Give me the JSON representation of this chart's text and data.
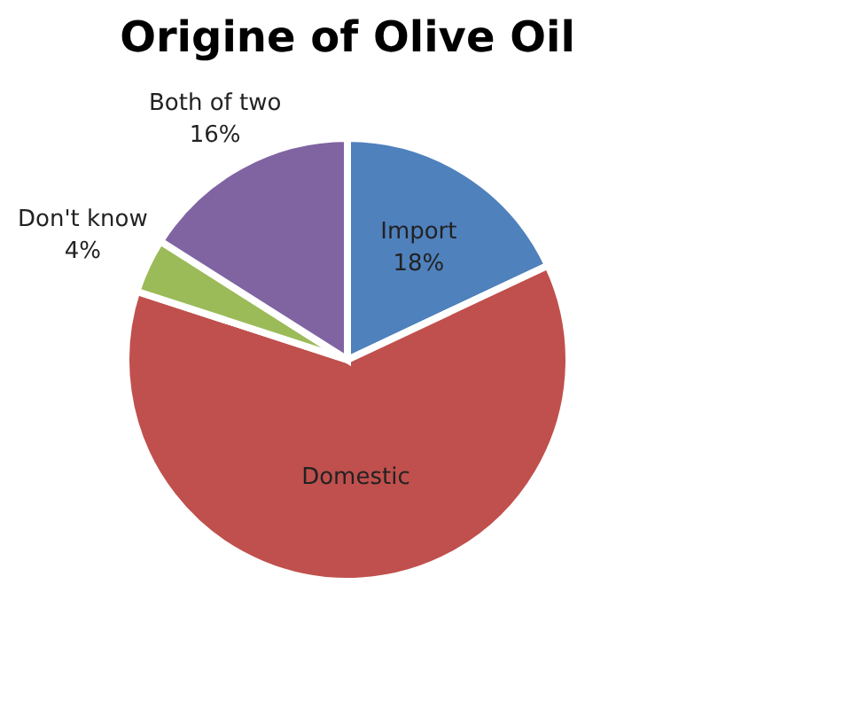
{
  "chart_data": {
    "type": "pie",
    "title": "Origine of Olive Oil",
    "categories": [
      "Import",
      "Domestic",
      "Don't know",
      "Both of two"
    ],
    "values": [
      18,
      62,
      4,
      16
    ],
    "colors": [
      "#4f81bd",
      "#c0504d",
      "#9bbb59",
      "#8064a2"
    ],
    "value_labels": [
      "18%",
      null,
      "4%",
      "16%"
    ]
  }
}
